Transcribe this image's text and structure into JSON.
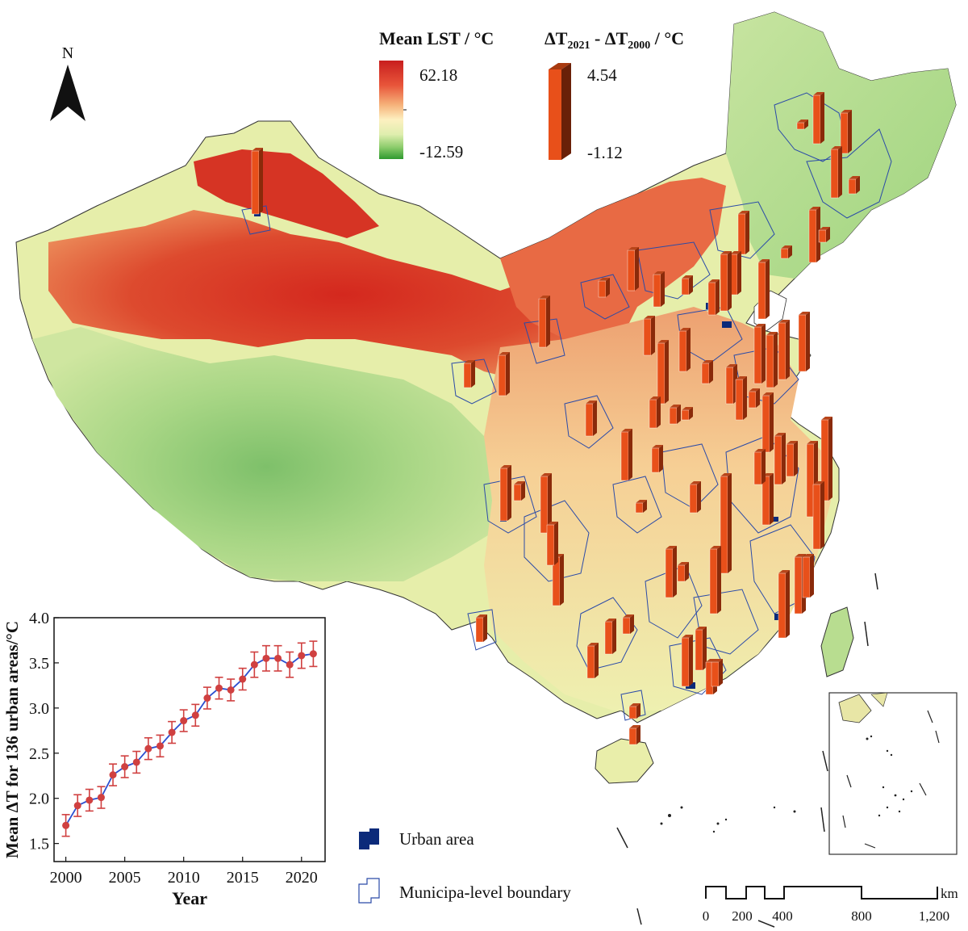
{
  "north_arrow": {
    "label": "N"
  },
  "legend_lst": {
    "title": "Mean LST / °C",
    "max": "62.18",
    "min": "-12.59",
    "colors": [
      "#c81e1e",
      "#e8553a",
      "#f4a56b",
      "#fbe6a8",
      "#e8f1b4",
      "#9fd27c",
      "#3a9a36"
    ]
  },
  "legend_dt": {
    "title_delta": "ΔT",
    "title_sub1": "2021",
    "title_mid": " - ΔT",
    "title_sub2": "2000",
    "title_unit": " / °C",
    "max": "4.54",
    "min": "-1.12",
    "bar_color": "#e8501a",
    "bar_dark": "#8a2a0a"
  },
  "legend_urban": {
    "urban_label": "Urban area",
    "boundary_label": "Municipa-level boundary",
    "urban_color": "#0b2a7a",
    "boundary_color": "#2a4aa8"
  },
  "scale_bar": {
    "unit": "km",
    "ticks": [
      "0",
      "200",
      "400",
      "800",
      "1,200"
    ]
  },
  "chart_data": {
    "type": "line",
    "xlabel": "Year",
    "ylabel": "Mean ΔT for 136 urban areas/°C",
    "xlim": [
      1999,
      2022
    ],
    "ylim": [
      1.3,
      4.0
    ],
    "xticks": [
      2000,
      2005,
      2010,
      2015,
      2020
    ],
    "yticks": [
      1.5,
      2.0,
      2.5,
      3.0,
      3.5,
      4.0
    ],
    "ytick_labels": [
      "1.5",
      "2.0",
      "2.5",
      "3.0",
      "3.5",
      "4.0"
    ],
    "x": [
      2000,
      2001,
      2002,
      2003,
      2004,
      2005,
      2006,
      2007,
      2008,
      2009,
      2010,
      2011,
      2012,
      2013,
      2014,
      2015,
      2016,
      2017,
      2018,
      2019,
      2020,
      2021
    ],
    "y": [
      1.7,
      1.92,
      1.98,
      2.01,
      2.26,
      2.35,
      2.4,
      2.55,
      2.58,
      2.73,
      2.86,
      2.92,
      3.11,
      3.22,
      3.2,
      3.32,
      3.48,
      3.55,
      3.55,
      3.48,
      3.58,
      3.6
    ],
    "err": [
      0.12,
      0.12,
      0.12,
      0.12,
      0.12,
      0.12,
      0.12,
      0.12,
      0.12,
      0.12,
      0.12,
      0.12,
      0.12,
      0.12,
      0.12,
      0.12,
      0.14,
      0.14,
      0.14,
      0.14,
      0.14,
      0.14
    ],
    "line_color": "#2c4fd0",
    "marker_color": "#d04040"
  }
}
